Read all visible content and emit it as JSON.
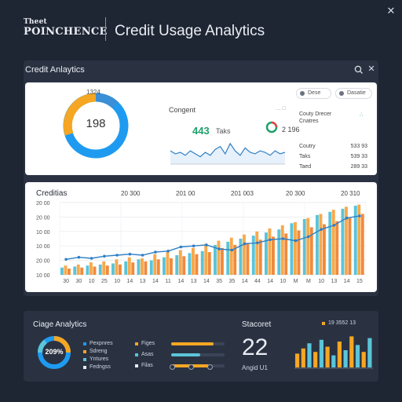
{
  "app": {
    "brand_top": "Theet",
    "brand_bottom": "POINCHENCE",
    "title": "Credit Usage Analytics",
    "close_glyph": "✕"
  },
  "panel": {
    "title": "Credit Anlaytics",
    "close_glyph": "✕",
    "search_icon": "search-icon"
  },
  "summary": {
    "donut_label": "1324",
    "donut_center": "198",
    "donut_colors": [
      "#1e9bf0",
      "#f5a623",
      "#3a8fd6"
    ],
    "spark_title": "Congent",
    "spark_value": "443",
    "spark_sub": "Taks",
    "spark_ring_value": "2 196",
    "spark_corner": "... □",
    "spark_points": [
      9,
      7,
      8,
      6,
      9,
      7,
      5,
      8,
      6,
      10,
      12,
      7,
      14,
      9,
      6,
      11,
      8,
      7,
      9,
      8,
      6,
      9,
      7,
      8
    ],
    "pills": [
      {
        "label": "Dese"
      },
      {
        "label": "Dasatie"
      }
    ],
    "side_header": "Couty Drecer",
    "side_header2": "Cnatres",
    "side_header_badge": "∴",
    "stats": [
      {
        "label": "Coutry",
        "value": "533 93"
      },
      {
        "label": "Taks",
        "value": "539 33"
      },
      {
        "label": "Taed",
        "value": "289 33"
      }
    ]
  },
  "chart_data": {
    "type": "bar",
    "title": "Creditias",
    "header_labels": [
      "20 300",
      "201 00",
      "201 003",
      "20 300",
      "20 310"
    ],
    "y_ticks": [
      "20 00",
      "20 00",
      "10 00",
      "10 00",
      "20 00",
      "10 00"
    ],
    "x_ticks": [
      "30",
      "30",
      "10",
      "25",
      "10",
      "14",
      "13",
      "14",
      "11",
      "14",
      "13",
      "14",
      "35",
      "35",
      "14",
      "44",
      "14",
      "10",
      "M",
      "M",
      "10",
      "13",
      "14",
      "15"
    ],
    "series": [
      {
        "color": "#5bc4d8",
        "values": [
          14,
          16,
          18,
          20,
          22,
          26,
          30,
          28,
          34,
          38,
          42,
          46,
          58,
          64,
          70,
          76,
          82,
          88,
          100,
          108,
          116,
          122,
          128,
          134
        ]
      },
      {
        "color": "#f7a94b",
        "values": [
          18,
          20,
          24,
          26,
          30,
          34,
          32,
          40,
          44,
          48,
          52,
          60,
          66,
          72,
          78,
          84,
          90,
          96,
          102,
          110,
          118,
          126,
          132,
          136
        ]
      },
      {
        "color": "#f08a3c",
        "values": [
          12,
          14,
          16,
          18,
          20,
          24,
          26,
          30,
          32,
          36,
          40,
          44,
          52,
          58,
          62,
          68,
          74,
          80,
          86,
          92,
          98,
          104,
          110,
          118
        ]
      }
    ],
    "line": [
      30,
      34,
      32,
      36,
      38,
      40,
      38,
      44,
      46,
      54,
      56,
      58,
      50,
      48,
      60,
      62,
      68,
      70,
      66,
      74,
      88,
      96,
      110,
      114
    ],
    "line_color": "#2f7fc4",
    "ymax": 140
  },
  "bottom": {
    "title": "Ciage Analytics",
    "donut_value": "209%",
    "legend_left": [
      {
        "label": "Pexpnres",
        "color": "#1e9bf0"
      },
      {
        "label": "Sdreng",
        "color": "#f5a623"
      },
      {
        "label": "Yntures",
        "color": "#5bc4d8"
      },
      {
        "label": "Fedngss",
        "color": "#e9edf3"
      }
    ],
    "legend_mid": [
      {
        "label": "Figes",
        "color": "#f5a623"
      },
      {
        "label": "Asas",
        "color": "#5bc4d8"
      },
      {
        "label": "Filas",
        "color": "#e9edf3"
      }
    ],
    "bar_fills": [
      0.8,
      0.55,
      0.7
    ],
    "bar_colors": [
      "#f5a623",
      "#5bc4d8",
      "#f5a623"
    ],
    "sub_title": "Stacoret",
    "big_value": "22",
    "big_sub": "Angid U1",
    "right_legend": "19 3552 13",
    "right_legend_color": "#f5a623",
    "mini_bars": [
      {
        "value": 40,
        "color": "#f5a623"
      },
      {
        "value": 55,
        "color": "#f5a623"
      },
      {
        "value": 70,
        "color": "#5bc4d8"
      },
      {
        "value": 45,
        "color": "#f5a623"
      },
      {
        "value": 80,
        "color": "#5bc4d8"
      },
      {
        "value": 60,
        "color": "#f5a623"
      },
      {
        "value": 35,
        "color": "#5bc4d8"
      },
      {
        "value": 75,
        "color": "#f5a623"
      },
      {
        "value": 50,
        "color": "#5bc4d8"
      },
      {
        "value": 90,
        "color": "#f5a623"
      },
      {
        "value": 65,
        "color": "#5bc4d8"
      },
      {
        "value": 45,
        "color": "#f5a623"
      },
      {
        "value": 85,
        "color": "#5bc4d8"
      }
    ]
  }
}
